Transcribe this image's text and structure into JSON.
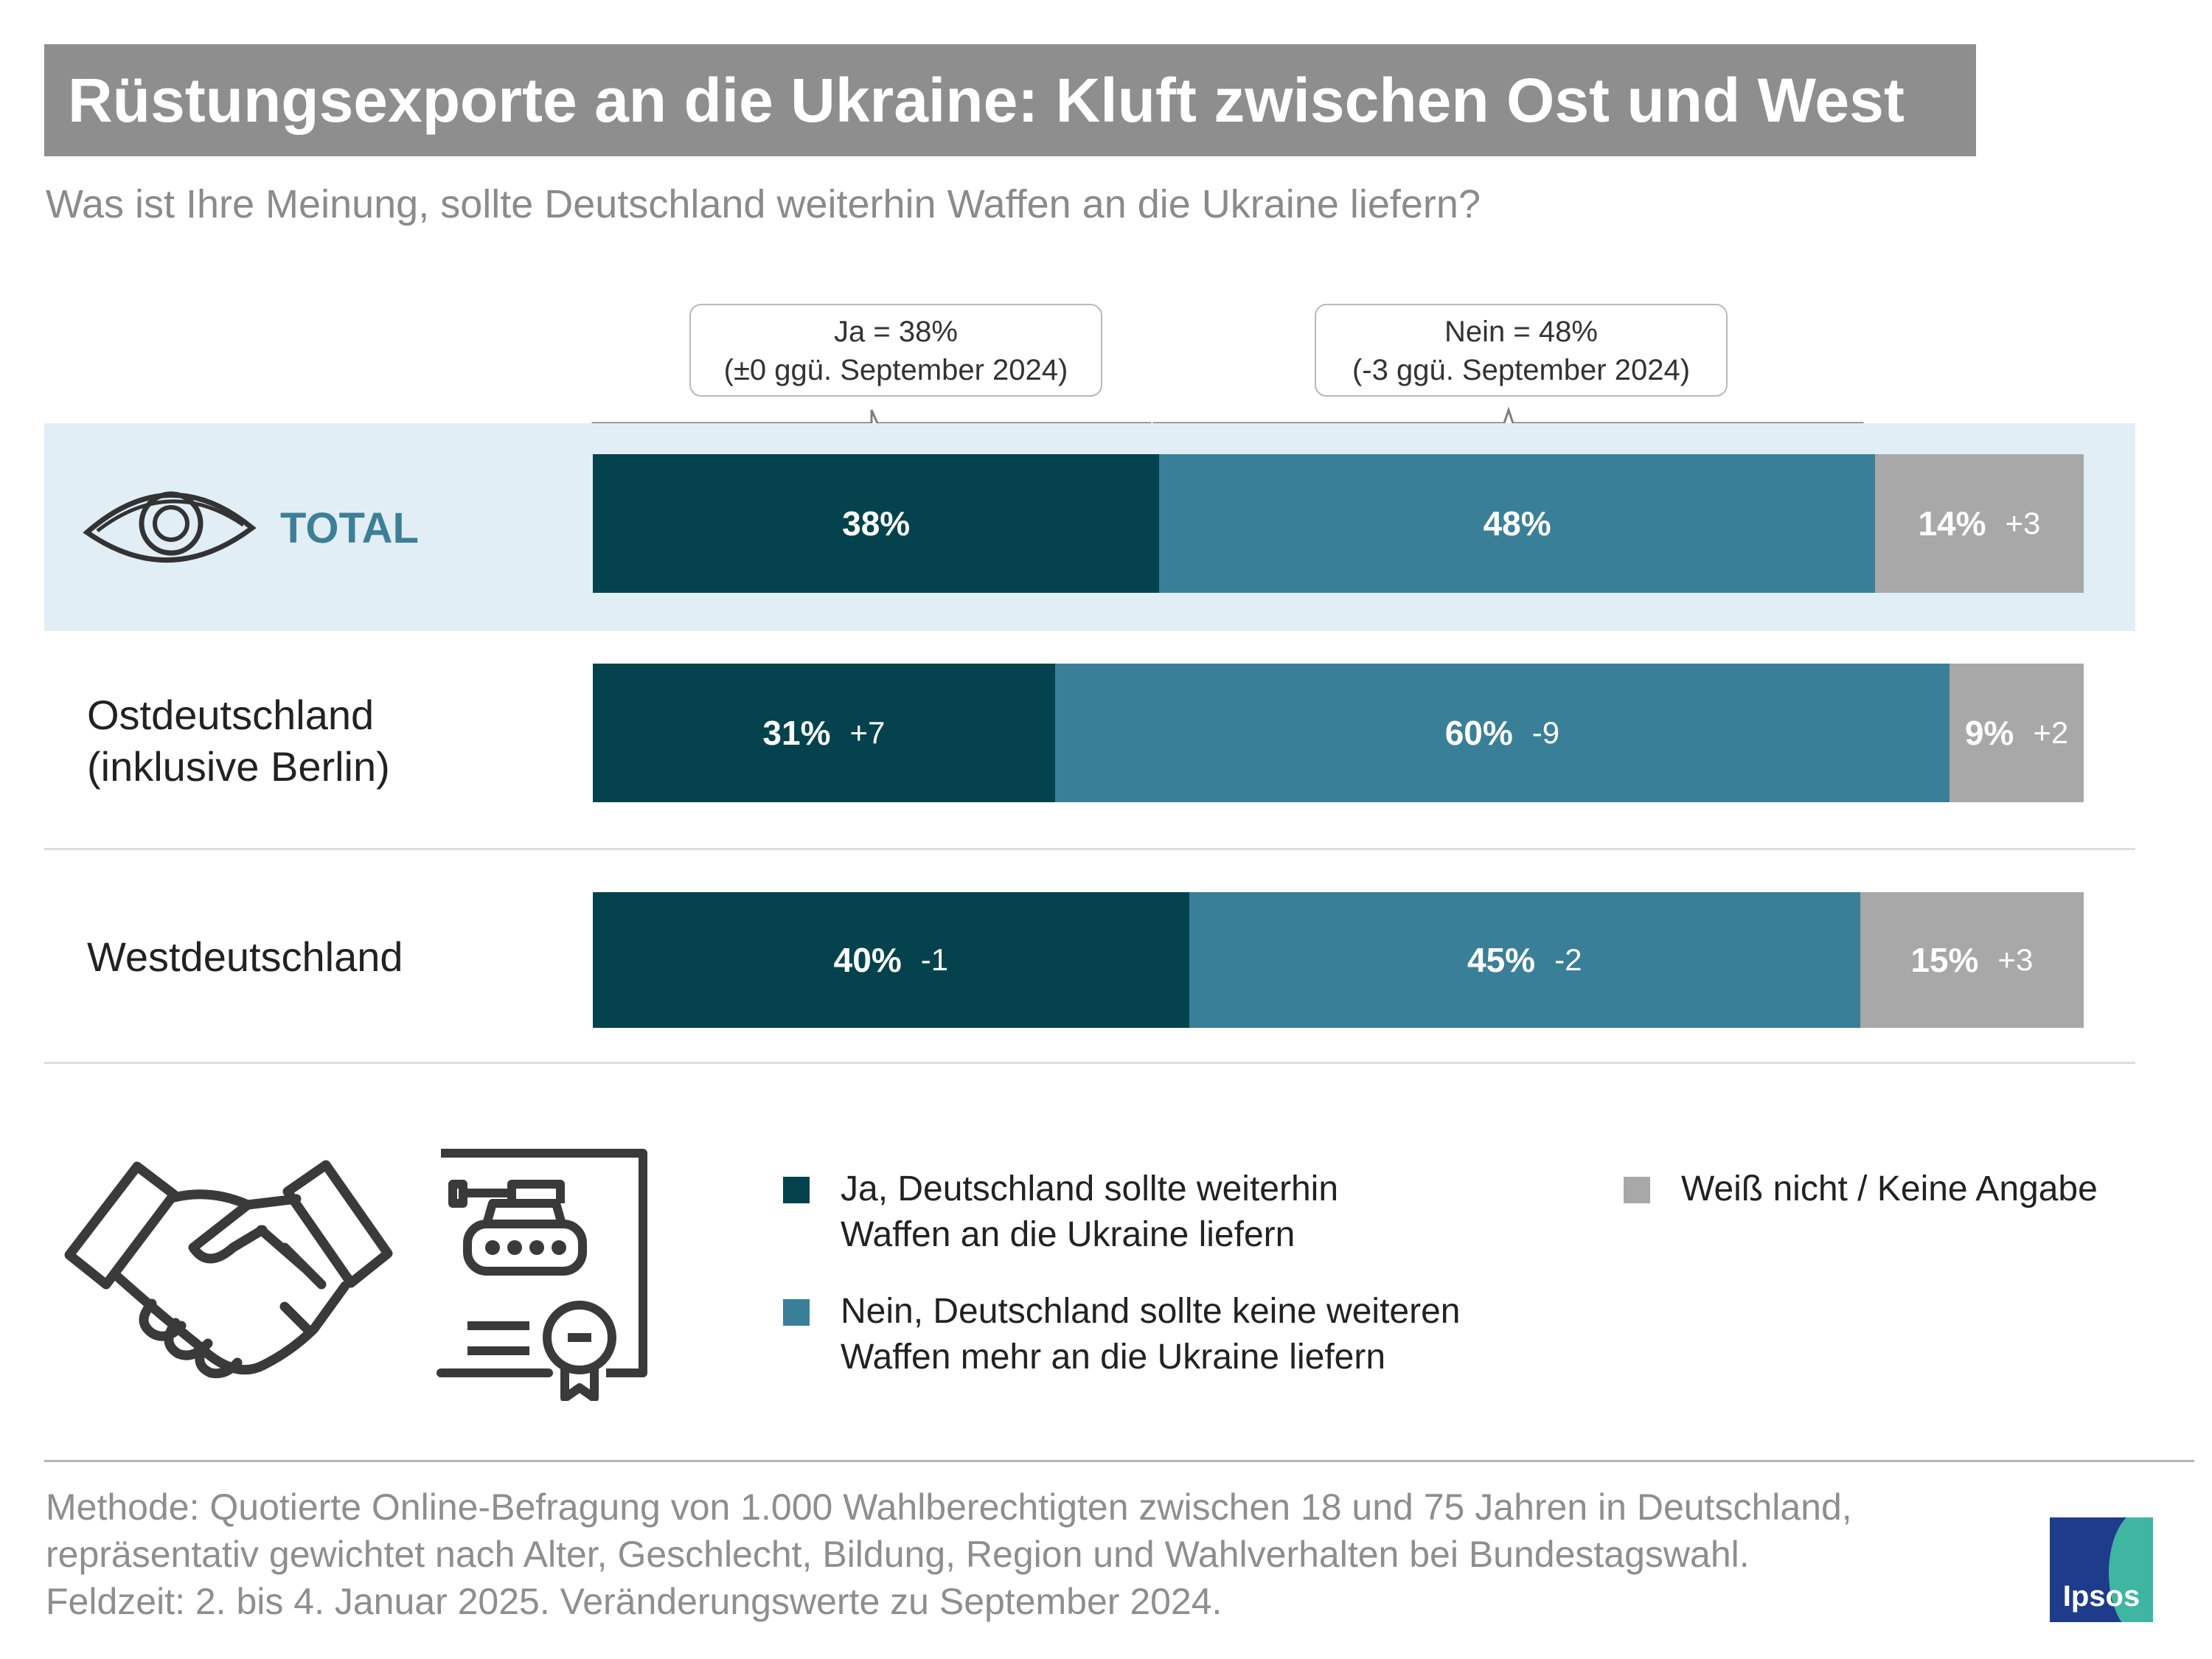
{
  "title": "Rüstungsexporte an die Ukraine: Kluft zwischen Ost und West",
  "subtitle": "Was ist Ihre Meinung, sollte Deutschland weiterhin Waffen an die Ukraine liefern?",
  "callouts": {
    "ja": {
      "line1": "Ja = 38%",
      "line2": "(±0 ggü. September 2024)"
    },
    "nein": {
      "line1": "Nein = 48%",
      "line2": "(-3 ggü. September 2024)"
    }
  },
  "colors": {
    "ja": "#04434d",
    "nein": "#3a7f98",
    "weiss_nicht": "#a8a8a8",
    "highlight": "#e2eef5"
  },
  "chart_data": {
    "type": "bar",
    "orientation": "horizontal-stacked-100",
    "categories": [
      "TOTAL",
      "Ostdeutschland (inklusive Berlin)",
      "Westdeutschland"
    ],
    "series": [
      {
        "name": "Ja, Deutschland sollte weiterhin Waffen an die Ukraine liefern",
        "values": [
          38,
          31,
          40
        ],
        "labels": [
          "38%",
          "31%",
          "40%"
        ],
        "changes": [
          "",
          "+7",
          "-1"
        ]
      },
      {
        "name": "Nein, Deutschland sollte keine weiteren Waffen mehr an die Ukraine liefern",
        "values": [
          48,
          60,
          45
        ],
        "labels": [
          "48%",
          "60%",
          "45%"
        ],
        "changes": [
          "",
          "-9",
          "-2"
        ]
      },
      {
        "name": "Weiß nicht / Keine Angabe",
        "values": [
          14,
          9,
          15
        ],
        "labels": [
          "14%",
          "9%",
          "15%"
        ],
        "changes": [
          "+3",
          "+2",
          "+3"
        ]
      }
    ],
    "xlim": [
      0,
      100
    ]
  },
  "rows": {
    "total": "TOTAL",
    "ost_line1": "Ostdeutschland",
    "ost_line2": "(inklusive Berlin)",
    "west": "Westdeutschland"
  },
  "legend": {
    "ja_line1": "Ja, Deutschland sollte weiterhin",
    "ja_line2": "Waffen an die Ukraine liefern",
    "nein_line1": "Nein, Deutschland sollte keine weiteren",
    "nein_line2": "Waffen mehr an die Ukraine liefern",
    "weiss": "Weiß nicht / Keine Angabe"
  },
  "footer": {
    "line1": "Methode: Quotierte Online-Befragung von 1.000 Wahlberechtigten zwischen 18 und 75 Jahren in Deutschland,",
    "line2": "repräsentativ gewichtet nach Alter, Geschlecht, Bildung, Region und Wahlverhalten bei Bundestagswahl.",
    "line3": "Feldzeit: 2. bis 4. Januar 2025. Veränderungswerte zu September 2024."
  },
  "logo": {
    "word": "Ipsos"
  },
  "icons": [
    "eye-icon",
    "handshake-icon",
    "tank-certificate-icon"
  ]
}
